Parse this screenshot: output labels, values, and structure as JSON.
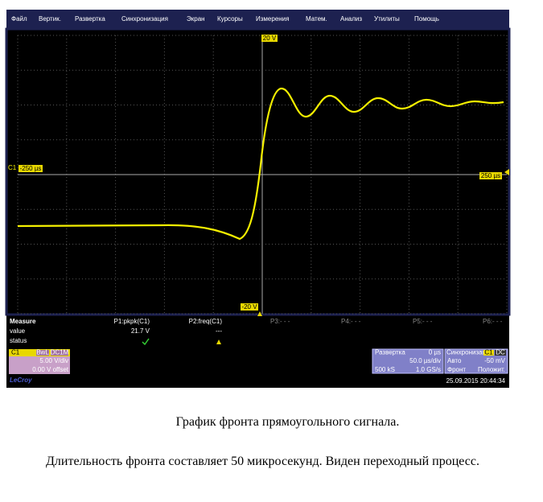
{
  "menu": [
    "Файл",
    "Вертик.",
    "Развертка",
    "Синхронизация",
    "Экран",
    "Курсоры",
    "Измерения",
    "Матем.",
    "Анализ",
    "Утилиты",
    "Помощь"
  ],
  "screen": {
    "top_level": "20 V",
    "bottom_level": "-20 V",
    "channel": "C1",
    "left_time": "-250 µs",
    "right_time": "250 µs"
  },
  "measure": {
    "title": "Measure",
    "row_value": "value",
    "row_status": "status",
    "p1": {
      "name": "P1:pkpk(C1)",
      "value": "21.7 V"
    },
    "p2": {
      "name": "P2:freq(C1)",
      "value": "---"
    },
    "others": [
      "P3:- - -",
      "P4:- - -",
      "P5:- - -",
      "P6:- - -"
    ]
  },
  "channel_box": {
    "name": "C1",
    "bwl": "BwL",
    "coupling": "DC1M",
    "scale": "5.00 V/div",
    "offset": "0.00 V offset"
  },
  "timebase": {
    "title": "Развертка",
    "delay": "0 µs",
    "scale": "50.0 µs/div",
    "points": "500 kS",
    "rate": "1.0 GS/s"
  },
  "trigger": {
    "title": "Синхронизация",
    "source": "C1",
    "coupling": "DC",
    "mode": "Авто",
    "level": "-50 mV",
    "type": "Фронт",
    "slope": "Положит."
  },
  "brand": "LeCroy",
  "timestamp": "25.09.2015 20:44:34",
  "caption": "График фронта прямоугольного сигнала.",
  "paragraph": "Длительность фронта составляет 50 микросекунд. Виден переходный процесс."
}
